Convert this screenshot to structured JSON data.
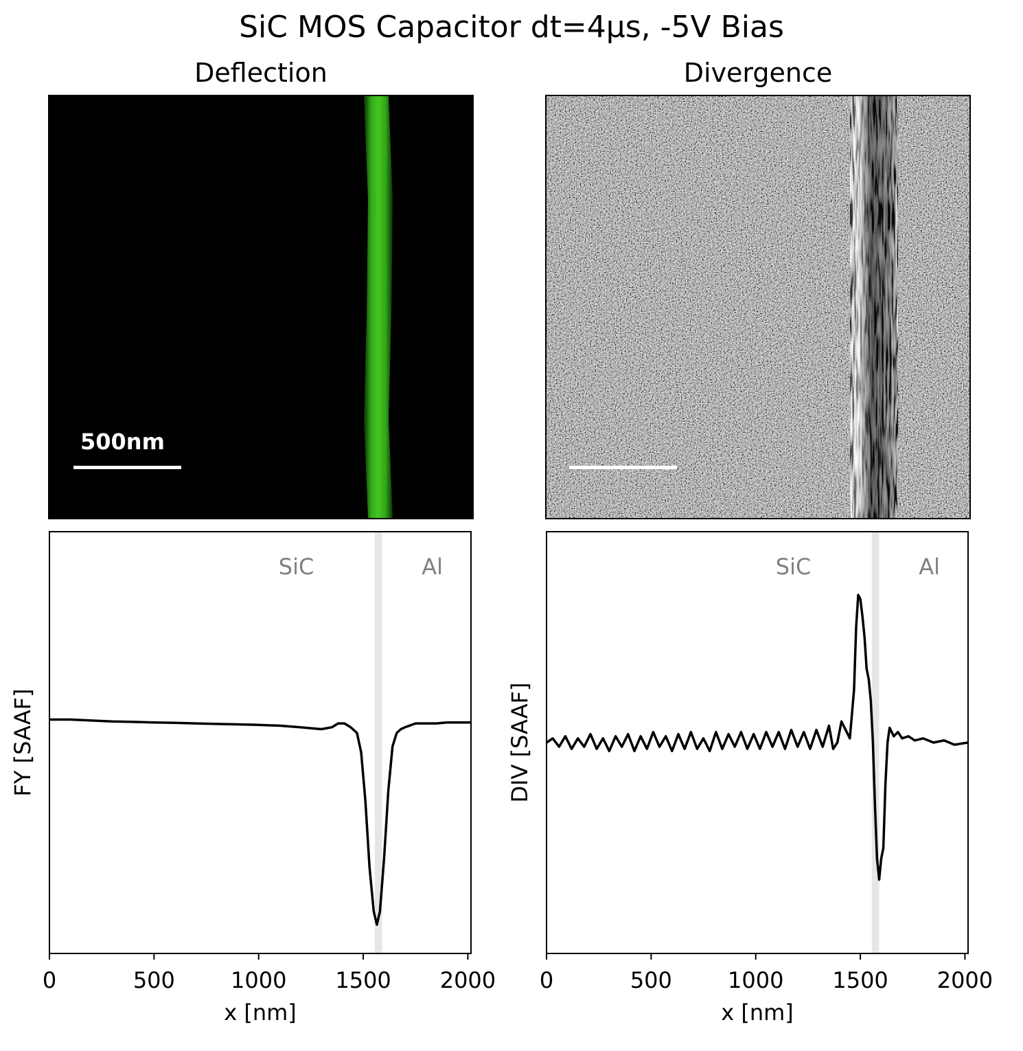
{
  "suptitle": "SiC MOS Capacitor dt=4μs, -5V Bias",
  "panels": [
    {
      "title": "Deflection",
      "image": {
        "background": "#000000",
        "stripe_color": "#3fbf1f",
        "stripe_x_nm": 1565,
        "stripe_width_nm": 110
      },
      "scalebar": {
        "label": "500nm",
        "length_nm": 500,
        "color": "#ffffff"
      }
    },
    {
      "title": "Divergence",
      "image": {
        "background": "#8c8c8c",
        "band_x_nm": 1590,
        "band_width_nm": 160
      },
      "scalebar": {
        "label": "",
        "length_nm": 500,
        "color": "#ffffff"
      }
    }
  ],
  "chart_data": [
    {
      "type": "line",
      "xlabel": "x [nm]",
      "ylabel": "FY [SAAF]",
      "xlim": [
        0,
        2015
      ],
      "ylim": [
        -1.2,
        1.0
      ],
      "xticks": [
        0,
        500,
        1000,
        1500,
        2000
      ],
      "yticks": [],
      "grid": false,
      "line_color": "#000000",
      "interface_band": {
        "x0": 1555,
        "x1": 1590,
        "color": "#e6e6e6"
      },
      "region_labels": [
        {
          "text": "SiC",
          "x": 1180,
          "color": "#808080"
        },
        {
          "text": "Al",
          "x": 1830,
          "color": "#808080"
        }
      ],
      "series": [
        {
          "x": [
            0,
            100,
            200,
            300,
            400,
            500,
            600,
            700,
            800,
            900,
            1000,
            1100,
            1200,
            1300,
            1350,
            1380,
            1410,
            1440,
            1470,
            1490,
            1510,
            1530,
            1550,
            1565,
            1580,
            1600,
            1620,
            1640,
            1660,
            1680,
            1700,
            1750,
            1800,
            1850,
            1900,
            2000,
            2015
          ],
          "y": [
            0.02,
            0.02,
            0.015,
            0.01,
            0.008,
            0.005,
            0.003,
            0.0,
            -0.003,
            -0.005,
            -0.008,
            -0.012,
            -0.02,
            -0.03,
            -0.02,
            0.0,
            0.0,
            -0.02,
            -0.05,
            -0.15,
            -0.4,
            -0.75,
            -0.98,
            -1.05,
            -0.98,
            -0.7,
            -0.35,
            -0.12,
            -0.05,
            -0.03,
            -0.02,
            0.0,
            0.0,
            0.0,
            0.005,
            0.005,
            0.005
          ]
        }
      ]
    },
    {
      "type": "line",
      "xlabel": "x [nm]",
      "ylabel": "DIV [SAAF]",
      "xlim": [
        0,
        2015
      ],
      "ylim": [
        -1.0,
        1.0
      ],
      "xticks": [
        0,
        500,
        1000,
        1500,
        2000
      ],
      "yticks": [],
      "grid": false,
      "line_color": "#000000",
      "interface_band": {
        "x0": 1555,
        "x1": 1590,
        "color": "#e6e6e6"
      },
      "region_labels": [
        {
          "text": "SiC",
          "x": 1180,
          "color": "#808080"
        },
        {
          "text": "Al",
          "x": 1830,
          "color": "#808080"
        }
      ],
      "series": [
        {
          "x": [
            0,
            30,
            60,
            90,
            120,
            150,
            180,
            210,
            240,
            270,
            300,
            330,
            360,
            390,
            420,
            450,
            480,
            510,
            540,
            570,
            600,
            630,
            660,
            690,
            720,
            750,
            780,
            810,
            840,
            870,
            900,
            930,
            960,
            990,
            1020,
            1050,
            1080,
            1110,
            1140,
            1170,
            1200,
            1230,
            1260,
            1290,
            1320,
            1350,
            1370,
            1390,
            1410,
            1430,
            1450,
            1470,
            1480,
            1490,
            1500,
            1510,
            1520,
            1530,
            1540,
            1550,
            1560,
            1570,
            1580,
            1590,
            1600,
            1610,
            1620,
            1630,
            1640,
            1660,
            1680,
            1700,
            1730,
            1760,
            1800,
            1850,
            1900,
            1950,
            2015
          ],
          "y": [
            0.0,
            0.02,
            -0.02,
            0.03,
            -0.03,
            0.02,
            -0.02,
            0.04,
            -0.03,
            0.02,
            -0.04,
            0.03,
            -0.02,
            0.04,
            -0.04,
            0.03,
            -0.03,
            0.05,
            -0.02,
            0.03,
            -0.04,
            0.04,
            -0.03,
            0.05,
            -0.03,
            0.02,
            -0.04,
            0.05,
            -0.03,
            0.04,
            -0.02,
            0.05,
            -0.03,
            0.04,
            -0.03,
            0.05,
            -0.02,
            0.05,
            -0.03,
            0.06,
            -0.02,
            0.05,
            -0.03,
            0.06,
            -0.02,
            0.08,
            -0.03,
            0.0,
            0.1,
            0.06,
            0.02,
            0.25,
            0.55,
            0.7,
            0.68,
            0.6,
            0.5,
            0.35,
            0.3,
            0.2,
            0.0,
            -0.3,
            -0.55,
            -0.65,
            -0.55,
            -0.5,
            -0.2,
            0.0,
            0.07,
            0.03,
            0.05,
            0.02,
            0.03,
            0.01,
            0.02,
            0.0,
            0.01,
            -0.01,
            0.0
          ]
        }
      ]
    }
  ]
}
